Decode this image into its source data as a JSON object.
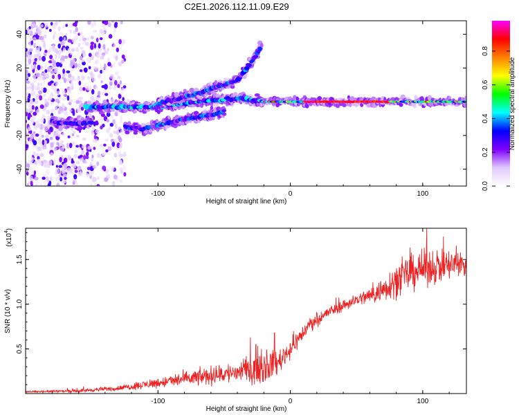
{
  "title": "C2E1.2026.112.11.09.E29",
  "chart_data": [
    {
      "type": "heatmap",
      "title": "C2E1.2026.112.11.09.E29",
      "xlabel": "Height of straight line (km)",
      "ylabel": "Frequency (Hz)",
      "xlim": [
        -200,
        133
      ],
      "ylim": [
        -50,
        48
      ],
      "x_ticks": [
        -100,
        0,
        100
      ],
      "y_ticks": [
        -40,
        -20,
        0,
        20,
        40
      ],
      "colorbar": {
        "label": "Normalized spectral amplitude",
        "range": [
          0,
          0.98
        ],
        "ticks": [
          "0.0",
          "0.2",
          "0.4",
          "0.6",
          "0.8"
        ],
        "colormap": [
          "#ffffff",
          "#e0c8ff",
          "#8000ff",
          "#0000ff",
          "#00ffff",
          "#00ff00",
          "#ffff00",
          "#ff8000",
          "#ff0000",
          "#ff00ff"
        ]
      },
      "features": [
        {
          "name": "low-altitude scattered noise",
          "x_range": [
            -200,
            -125
          ],
          "freq_range": [
            -50,
            48
          ],
          "amplitude": 0.15
        },
        {
          "name": "main doppler trace",
          "x": [
            -155,
            -130,
            -100,
            -70,
            -40,
            -20
          ],
          "freq": [
            -3,
            -3,
            -3,
            0,
            2,
            0
          ],
          "amplitude": 0.35
        },
        {
          "name": "upper branch",
          "x": [
            -100,
            -70,
            -40,
            -28,
            -22
          ],
          "freq": [
            -1,
            5,
            13,
            25,
            33
          ],
          "amplitude": 0.3
        },
        {
          "name": "lower branch",
          "x": [
            -180,
            -165,
            -150
          ],
          "freq": [
            -12,
            -13,
            -12
          ],
          "amplitude": 0.25
        },
        {
          "name": "lower branch 2",
          "x": [
            -125,
            -110,
            -90,
            -70,
            -50
          ],
          "freq": [
            -15,
            -16,
            -12,
            -9,
            -6
          ],
          "amplitude": 0.3
        },
        {
          "name": "steady tone",
          "x": [
            -20,
            0,
            40,
            80,
            133
          ],
          "freq": [
            0,
            0,
            0,
            0,
            0
          ],
          "amplitude": 0.85
        }
      ]
    },
    {
      "type": "line",
      "xlabel": "Height of straight line (km)",
      "ylabel": "SNR (10 * v/v)",
      "y_multiplier": "(x10",
      "y_multiplier_exp": "4",
      "y_multiplier_close": ")",
      "xlim": [
        -200,
        133
      ],
      "ylim": [
        0,
        1.85
      ],
      "x_ticks": [
        -100,
        0,
        100
      ],
      "y_ticks": [
        "0.5",
        "1.0",
        "1.5"
      ],
      "y_tick_values": [
        0.5,
        1.0,
        1.5
      ],
      "color": "#ee2222",
      "envelope": {
        "x": [
          -200,
          -160,
          -130,
          -100,
          -70,
          -40,
          -20,
          -10,
          0,
          15,
          30,
          50,
          65,
          80,
          95,
          110,
          133
        ],
        "mean": [
          0.02,
          0.03,
          0.06,
          0.12,
          0.18,
          0.24,
          0.3,
          0.34,
          0.5,
          0.78,
          0.92,
          1.05,
          1.12,
          1.27,
          1.38,
          1.42,
          1.45
        ],
        "noise": [
          0.01,
          0.02,
          0.03,
          0.06,
          0.1,
          0.13,
          0.2,
          0.14,
          0.12,
          0.08,
          0.07,
          0.07,
          0.12,
          0.2,
          0.22,
          0.2,
          0.18
        ]
      },
      "peaks": [
        {
          "x": 103,
          "y": 1.85
        },
        {
          "x": -12,
          "y": 0.68
        },
        {
          "x": -26,
          "y": 0.55
        }
      ]
    }
  ]
}
